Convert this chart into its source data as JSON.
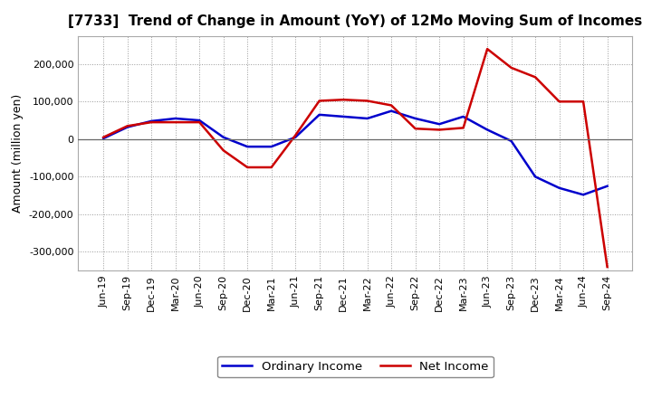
{
  "title": "[7733]  Trend of Change in Amount (YoY) of 12Mo Moving Sum of Incomes",
  "ylabel": "Amount (million yen)",
  "x_labels": [
    "Jun-19",
    "Sep-19",
    "Dec-19",
    "Mar-20",
    "Jun-20",
    "Sep-20",
    "Dec-20",
    "Mar-21",
    "Jun-21",
    "Sep-21",
    "Dec-21",
    "Mar-22",
    "Jun-22",
    "Sep-22",
    "Dec-22",
    "Mar-23",
    "Jun-23",
    "Sep-23",
    "Dec-23",
    "Mar-24",
    "Jun-24",
    "Sep-24"
  ],
  "ordinary_income": [
    2000,
    32000,
    48000,
    55000,
    50000,
    5000,
    -20000,
    -20000,
    5000,
    65000,
    60000,
    55000,
    75000,
    55000,
    40000,
    60000,
    25000,
    -5000,
    -100000,
    -130000,
    -148000,
    -125000
  ],
  "net_income": [
    5000,
    35000,
    45000,
    45000,
    45000,
    -30000,
    -75000,
    -75000,
    10000,
    102000,
    105000,
    102000,
    90000,
    28000,
    25000,
    30000,
    240000,
    190000,
    165000,
    100000,
    100000,
    -340000
  ],
  "ordinary_color": "#0000cc",
  "net_color": "#cc0000",
  "ylim": [
    -350000,
    275000
  ],
  "yticks": [
    -300000,
    -200000,
    -100000,
    0,
    100000,
    200000
  ],
  "background_color": "#ffffff",
  "grid_color": "#999999",
  "line_width": 1.8,
  "legend_ordinary": "Ordinary Income",
  "legend_net": "Net Income",
  "title_fontsize": 11,
  "axis_fontsize": 8,
  "ylabel_fontsize": 9
}
